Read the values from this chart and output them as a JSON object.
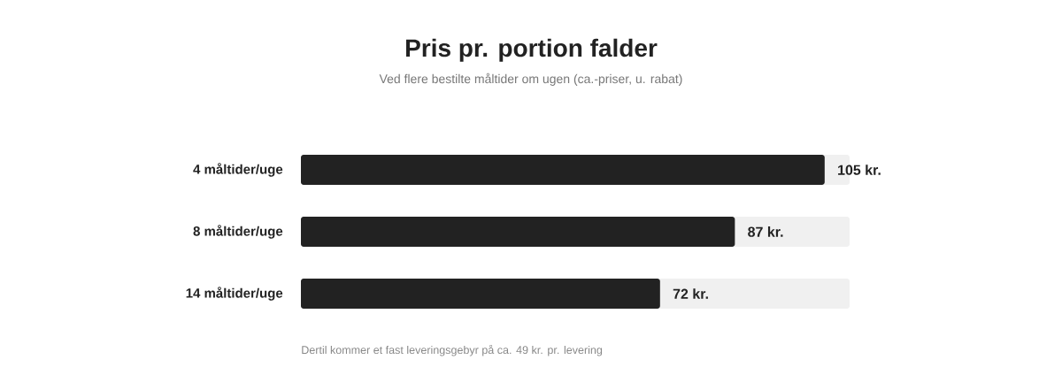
{
  "chart_data": {
    "type": "bar",
    "orientation": "horizontal",
    "title": "Pris pr. portion falder",
    "subtitle": "Ved flere bestilte måltider om ugen (ca.-priser, u. rabat)",
    "categories": [
      "4 måltider/uge",
      "8 måltider/uge",
      "14 måltider/uge"
    ],
    "values": [
      105,
      87,
      72
    ],
    "value_labels": [
      "105 kr.",
      "87 kr.",
      "72 kr."
    ],
    "color": "#222222",
    "xlim": [
      0,
      110
    ],
    "tick_labels": "y",
    "annotations": [
      "Dertil kommer et fast leveringsgebyr på ca. 49 kr. pr. levering"
    ]
  }
}
